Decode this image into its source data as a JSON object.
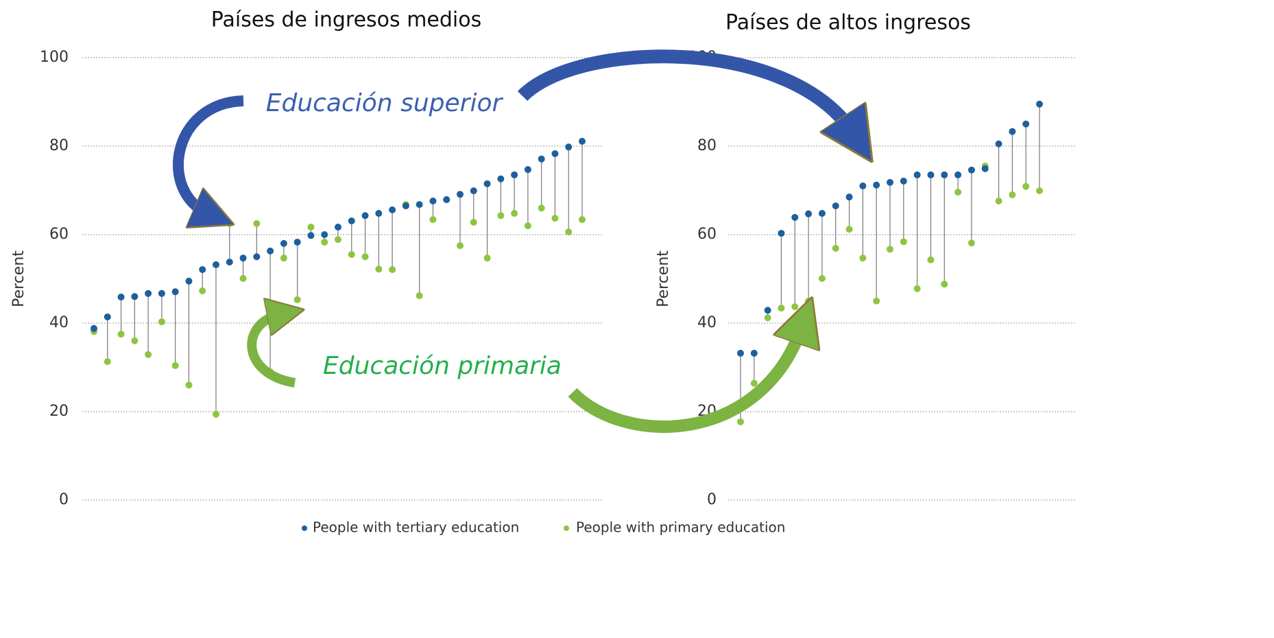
{
  "chart_data": [
    {
      "type": "dotplot",
      "title": "Países de ingresos medios",
      "ylabel": "Percent",
      "ylim": [
        0,
        100
      ],
      "yticks": [
        0,
        20,
        40,
        60,
        80,
        100
      ],
      "grid": true,
      "series": [
        {
          "name": "People with tertiary education",
          "color": "#1e5f9e",
          "values": [
            38.8,
            41.4,
            45.9,
            46.0,
            46.7,
            46.7,
            47.1,
            49.5,
            52.1,
            53.2,
            53.8,
            54.7,
            55.0,
            56.3,
            58.0,
            58.3,
            59.8,
            60.0,
            61.7,
            63.1,
            64.3,
            64.8,
            65.6,
            66.5,
            66.8,
            67.6,
            67.9,
            69.1,
            69.9,
            71.5,
            72.6,
            73.5,
            74.7,
            77.1,
            78.3,
            79.8,
            81.1
          ]
        },
        {
          "name": "People with primary education",
          "color": "#8cc63f",
          "values": [
            38.1,
            31.3,
            37.5,
            36.0,
            32.9,
            40.3,
            30.4,
            26.0,
            47.3,
            19.4,
            62.5,
            50.1,
            62.5,
            29.0,
            54.7,
            45.3,
            61.7,
            58.3,
            58.9,
            55.5,
            55.0,
            52.2,
            52.1,
            66.8,
            46.2,
            63.4,
            67.9,
            57.5,
            62.8,
            54.7,
            64.3,
            64.8,
            62.0,
            66.0,
            63.7,
            60.6,
            63.4
          ]
        }
      ]
    },
    {
      "type": "dotplot",
      "title": "Países de altos ingresos",
      "ylabel": "Percent",
      "ylim": [
        0,
        100
      ],
      "yticks": [
        0,
        20,
        40,
        60,
        80,
        100
      ],
      "grid": true,
      "series": [
        {
          "color": "#1e5f9e",
          "values": [
            33.2,
            33.2,
            42.9,
            60.3,
            63.9,
            64.7,
            64.8,
            66.5,
            68.5,
            71.0,
            71.2,
            71.8,
            72.1,
            73.5,
            73.5,
            73.5,
            73.5,
            74.6,
            74.9,
            80.5,
            83.3,
            85.0,
            89.5
          ]
        },
        {
          "color": "#8cc63f",
          "values": [
            17.7,
            26.4,
            41.2,
            43.4,
            43.7,
            45.0,
            50.1,
            56.9,
            61.2,
            54.7,
            45.0,
            56.7,
            58.4,
            47.8,
            54.3,
            48.8,
            69.6,
            58.1,
            75.5,
            67.6,
            69.0,
            70.9,
            69.9
          ]
        }
      ]
    }
  ],
  "annotations": [
    {
      "text": "Educación superior",
      "color": "#3a5fb0"
    },
    {
      "text": "Educación primaria",
      "color": "#22b04b"
    }
  ]
}
